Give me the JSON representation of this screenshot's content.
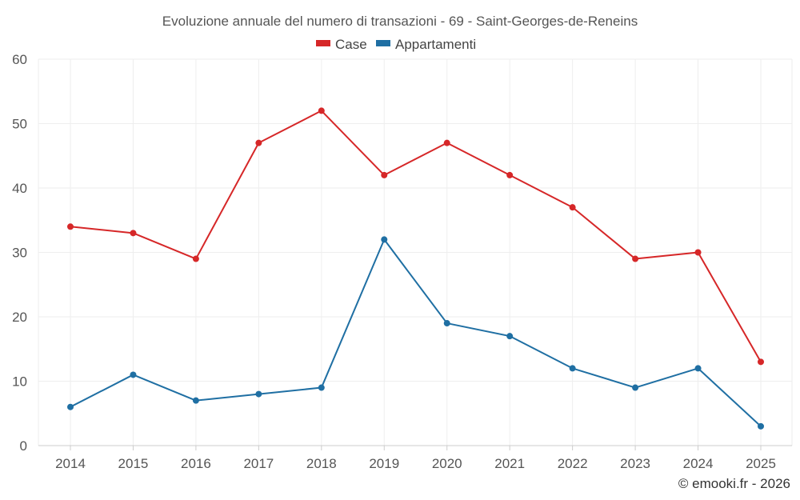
{
  "chart_data": {
    "type": "line",
    "title": "Evoluzione annuale del numero di transazioni - 69 - Saint-Georges-de-Reneins",
    "categories": [
      "2014",
      "2015",
      "2016",
      "2017",
      "2018",
      "2019",
      "2020",
      "2021",
      "2022",
      "2023",
      "2024",
      "2025"
    ],
    "series": [
      {
        "name": "Case",
        "color": "#d62728",
        "values": [
          34,
          33,
          29,
          47,
          52,
          42,
          47,
          42,
          37,
          29,
          30,
          13
        ]
      },
      {
        "name": "Appartamenti",
        "color": "#1f6fa3",
        "values": [
          6,
          11,
          7,
          8,
          9,
          32,
          19,
          17,
          12,
          9,
          12,
          3
        ]
      }
    ],
    "ylim": [
      0,
      60
    ],
    "yticks": [
      0,
      10,
      20,
      30,
      40,
      50,
      60
    ],
    "xlabel": "",
    "ylabel": "",
    "grid": true,
    "legend_position": "top-center"
  },
  "credit": "© emooki.fr - 2026"
}
